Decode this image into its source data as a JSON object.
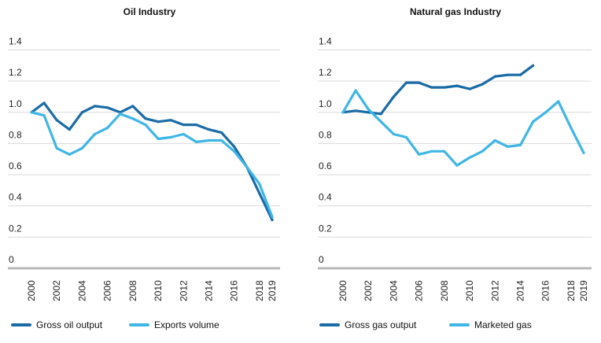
{
  "colors": {
    "dark_blue": "#1a6ba6",
    "light_blue": "#3fb6e6",
    "grid": "#d9d9d9",
    "axis": "#b8b8b8"
  },
  "chart_data": [
    {
      "type": "line",
      "title": "Oil Industry",
      "xlabel": "",
      "ylabel": "",
      "ylim": [
        0,
        1.4
      ],
      "y_ticks": [
        "1.4",
        "1.2",
        "1.0",
        "0.8",
        "0.6",
        "0.4",
        "0.2",
        "0"
      ],
      "x_ticks": [
        "2000",
        "2002",
        "2004",
        "2006",
        "2008",
        "2010",
        "2012",
        "2014",
        "2016",
        "2018",
        "2019"
      ],
      "x": [
        2000,
        2001,
        2002,
        2003,
        2004,
        2005,
        2006,
        2007,
        2008,
        2009,
        2010,
        2011,
        2012,
        2013,
        2014,
        2015,
        2016,
        2017,
        2018,
        2019
      ],
      "grid": true,
      "legend_position": "bottom",
      "series": [
        {
          "name": "Gross oil output",
          "color": "#1a6ba6",
          "values": [
            1.0,
            1.06,
            0.95,
            0.89,
            1.0,
            1.04,
            1.03,
            1.0,
            1.04,
            0.96,
            0.94,
            0.95,
            0.92,
            0.92,
            0.89,
            0.87,
            0.78,
            0.65,
            0.48,
            0.31
          ]
        },
        {
          "name": "Exports volume",
          "color": "#3fb6e6",
          "values": [
            1.0,
            0.98,
            0.77,
            0.73,
            0.77,
            0.86,
            0.9,
            0.99,
            0.96,
            0.92,
            0.83,
            0.84,
            0.86,
            0.81,
            0.82,
            0.82,
            0.75,
            0.65,
            0.54,
            0.33
          ]
        }
      ]
    },
    {
      "type": "line",
      "title": "Natural gas Industry",
      "xlabel": "",
      "ylabel": "",
      "ylim": [
        0,
        1.4
      ],
      "y_ticks": [
        "1.4",
        "1.2",
        "1.0",
        "0.8",
        "0.6",
        "0.4",
        "0.2",
        "0"
      ],
      "x_ticks": [
        "2000",
        "2002",
        "2004",
        "2006",
        "2008",
        "2010",
        "2012",
        "2014",
        "2016",
        "2018",
        "2019"
      ],
      "x": [
        2000,
        2001,
        2002,
        2003,
        2004,
        2005,
        2006,
        2007,
        2008,
        2009,
        2010,
        2011,
        2012,
        2013,
        2014,
        2015,
        2016,
        2017,
        2018,
        2019
      ],
      "grid": true,
      "legend_position": "bottom",
      "series": [
        {
          "name": "Gross gas output",
          "color": "#1a6ba6",
          "values": [
            1.0,
            1.01,
            1.0,
            0.99,
            1.1,
            1.19,
            1.19,
            1.16,
            1.16,
            1.17,
            1.15,
            1.18,
            1.23,
            1.24,
            1.24,
            1.3,
            null,
            null,
            null,
            null
          ]
        },
        {
          "name": "Marketed gas",
          "color": "#3fb6e6",
          "values": [
            1.0,
            1.14,
            1.02,
            0.94,
            0.86,
            0.84,
            0.73,
            0.75,
            0.75,
            0.66,
            0.71,
            0.75,
            0.82,
            0.78,
            0.79,
            0.94,
            1.0,
            1.07,
            0.9,
            0.74
          ]
        }
      ]
    }
  ]
}
